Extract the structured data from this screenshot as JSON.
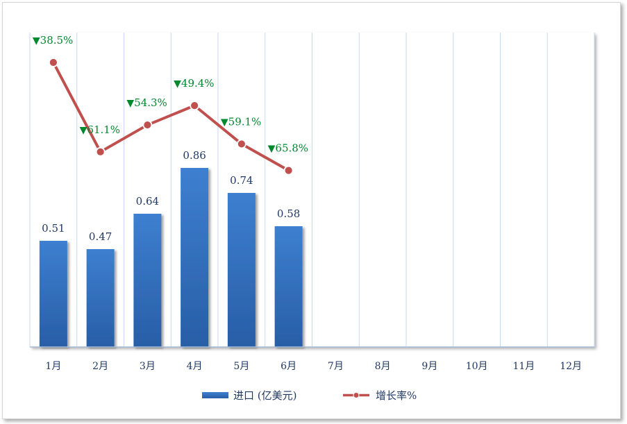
{
  "chart_data": {
    "type": "bar",
    "categories": [
      "1月",
      "2月",
      "3月",
      "4月",
      "5月",
      "6月",
      "7月",
      "8月",
      "9月",
      "10月",
      "11月",
      "12月"
    ],
    "series": [
      {
        "name": "进口 (亿美元)",
        "type": "bar",
        "values": [
          0.51,
          0.47,
          0.64,
          0.86,
          0.74,
          0.58,
          null,
          null,
          null,
          null,
          null,
          null
        ],
        "data_labels": [
          "0.51",
          "0.47",
          "0.64",
          "0.86",
          "0.74",
          "0.58"
        ]
      },
      {
        "name": "增长率%",
        "type": "line",
        "values": [
          -38.5,
          -61.1,
          -54.3,
          -49.4,
          -59.1,
          -65.8,
          null,
          null,
          null,
          null,
          null,
          null
        ],
        "data_labels": [
          "38.5%",
          "61.1%",
          "54.3%",
          "49.4%",
          "59.1%",
          "65.8%"
        ],
        "marker_symbol": "▼"
      }
    ],
    "grid": true,
    "legend_position": "bottom",
    "colors": {
      "bar_top": "#3d7fd0",
      "bar_bottom": "#285ea6",
      "line": "#c0504d",
      "marker_fill": "#c0504d",
      "growth_label": "#00882e",
      "bar_label": "#1f3864",
      "axis_label": "#1f3864",
      "gridline": "#c6d9f0"
    }
  },
  "legend": {
    "bar_label": "进口 (亿美元)",
    "line_label": "增长率%"
  }
}
